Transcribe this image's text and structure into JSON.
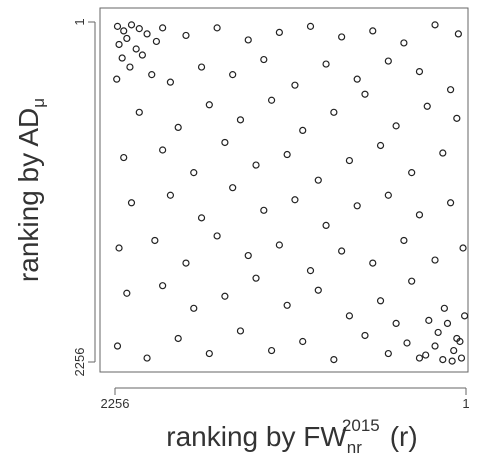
{
  "chart_data": {
    "type": "scatter",
    "x_label": {
      "text": "ranking by FW",
      "subscript": "nr",
      "superscript": "2015",
      "suffix": "(r)"
    },
    "y_label": {
      "text": "ranking by AD",
      "subscript": "μ"
    },
    "color": "#222222",
    "xlim": [
      2256,
      1
    ],
    "xticks": [
      2256,
      1
    ],
    "ylim": [
      2256,
      1
    ],
    "yticks": [
      1,
      2256
    ],
    "x": [
      2240,
      2200,
      2150,
      2180,
      2100,
      2230,
      2050,
      2120,
      2210,
      1990,
      2160,
      2080,
      1950,
      2245,
      2020,
      30,
      80,
      150,
      60,
      200,
      120,
      260,
      10,
      180,
      90,
      240,
      40,
      300,
      140,
      1800,
      1600,
      1400,
      1200,
      1000,
      800,
      600,
      400,
      200,
      50,
      1900,
      1700,
      1500,
      1300,
      1100,
      900,
      700,
      500,
      300,
      100,
      2100,
      1850,
      1650,
      1450,
      1250,
      1050,
      850,
      650,
      450,
      250,
      60,
      2200,
      1950,
      1750,
      1550,
      1350,
      1150,
      950,
      750,
      550,
      350,
      150,
      2150,
      1900,
      1700,
      1500,
      1300,
      1100,
      900,
      700,
      500,
      300,
      100,
      2230,
      2000,
      1800,
      1600,
      1400,
      1200,
      1000,
      800,
      600,
      400,
      200,
      20,
      2180,
      1950,
      1750,
      1550,
      1350,
      1150,
      950,
      750,
      550,
      350,
      450,
      2240,
      2050,
      1850,
      1650,
      1450,
      1250,
      1050,
      850,
      650,
      500,
      380
    ],
    "values": [
      30,
      60,
      20,
      110,
      45,
      150,
      80,
      180,
      240,
      130,
      300,
      220,
      40,
      380,
      350,
      2230,
      2180,
      2240,
      2100,
      2150,
      2000,
      2210,
      1950,
      2060,
      2250,
      1980,
      2120,
      2230,
      1900,
      90,
      40,
      120,
      70,
      30,
      100,
      60,
      140,
      20,
      80,
      400,
      300,
      350,
      250,
      420,
      280,
      380,
      260,
      330,
      450,
      600,
      700,
      550,
      650,
      520,
      720,
      600,
      480,
      690,
      560,
      640,
      900,
      850,
      1000,
      800,
      950,
      880,
      1050,
      920,
      820,
      1000,
      870,
      1200,
      1150,
      1300,
      1100,
      1250,
      1180,
      1350,
      1220,
      1150,
      1280,
      1200,
      1500,
      1450,
      1600,
      1420,
      1550,
      1480,
      1650,
      1520,
      1600,
      1450,
      1580,
      1500,
      1800,
      1750,
      1900,
      1820,
      1700,
      1880,
      1780,
      1950,
      1850,
      1720,
      2000,
      2150,
      2230,
      2100,
      2200,
      2050,
      2180,
      2120,
      2240,
      2080,
      2200,
      2130
    ]
  }
}
